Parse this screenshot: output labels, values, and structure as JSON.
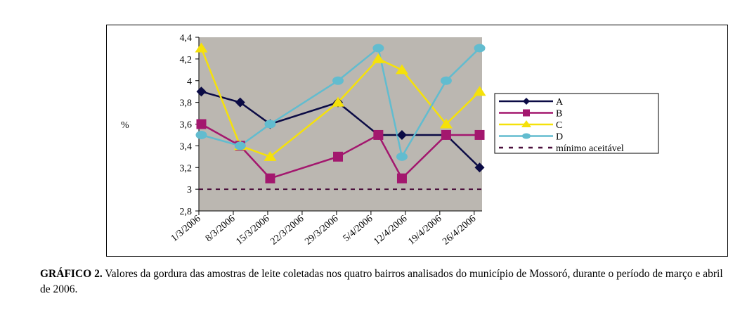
{
  "chart_data": {
    "type": "line",
    "title": "",
    "xlabel": "",
    "ylabel": "%",
    "ylim": [
      2.8,
      4.4
    ],
    "yticks": [
      "2,8",
      "3",
      "3,2",
      "3,4",
      "3,6",
      "3,8",
      "4",
      "4,2",
      "4,4"
    ],
    "ytick_values": [
      2.8,
      3.0,
      3.2,
      3.4,
      3.6,
      3.8,
      4.0,
      4.2,
      4.4
    ],
    "x_unit": "days since 1/3/2006",
    "xlim": [
      0,
      57.6
    ],
    "xticks": [
      "1/3/2006",
      "8/3/2006",
      "15/3/2006",
      "22/3/2006",
      "29/3/2006",
      "5/4/2006",
      "12/4/2006",
      "19/4/2006",
      "26/4/2006"
    ],
    "xtick_values": [
      0,
      7,
      14,
      21,
      28,
      35,
      42,
      49,
      56
    ],
    "x": [
      0.5,
      8.4,
      14.5,
      28.3,
      36.5,
      41.3,
      50.3,
      57.1
    ],
    "series": [
      {
        "name": "A",
        "color": "#0b0b45",
        "marker": "diamond",
        "values": [
          3.9,
          3.8,
          3.6,
          3.8,
          3.5,
          3.5,
          3.5,
          3.2
        ]
      },
      {
        "name": "B",
        "color": "#a3176e",
        "marker": "square",
        "values": [
          3.6,
          3.4,
          3.1,
          3.3,
          3.5,
          3.1,
          3.5,
          3.5
        ]
      },
      {
        "name": "C",
        "color": "#f5e10a",
        "marker": "triangle",
        "values": [
          4.3,
          3.4,
          3.3,
          3.8,
          4.2,
          4.1,
          3.6,
          3.9
        ]
      },
      {
        "name": "D",
        "color": "#62bccf",
        "marker": "circle",
        "values": [
          3.5,
          3.4,
          3.6,
          4.0,
          4.3,
          3.3,
          4.0,
          4.3
        ]
      }
    ],
    "reference_line": {
      "name": "mínimo aceitável",
      "value": 3.0,
      "color": "#4a0f3c",
      "style": "dashed"
    },
    "plot_background": "#bbb7b1",
    "grid": false,
    "legend_position": "right"
  },
  "caption": {
    "label": "GRÁFICO 2.",
    "text": " Valores da gordura das amostras de leite coletadas nos quatro bairros analisados do município de Mossoró, durante o período de março e abril de 2006."
  }
}
